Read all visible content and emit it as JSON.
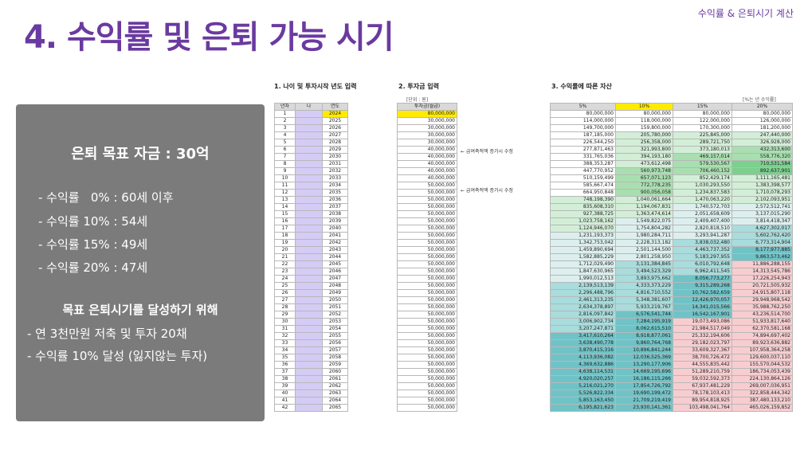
{
  "header": {
    "title": "4. 수익률 및 은퇴 가능 시기",
    "subtitle": "수익률 & 은퇴시기 계산"
  },
  "summary": {
    "goal": "은퇴 목표 자금 : 30억",
    "rates": [
      "- 수익률   0% : 60세 이후",
      "- 수익률 10% : 54세",
      "- 수익률 15% : 49세",
      "- 수익률 20% : 47세"
    ],
    "plan_title": "목표 은퇴시기를 달성하기 위해",
    "plan": [
      "- 연 3천만원 저축 및 투자 20채",
      "- 수익률 10% 달성 (잃지않는 투자)"
    ]
  },
  "sections": {
    "s1": "1. 나이 및 투자시작 년도 입력",
    "s2": "2. 투자금 입력",
    "s3": "3. 수익률에 따른 자산"
  },
  "notes": {
    "unit": "[단위 : 원]",
    "rate_unit": "[%는 년 수익률]",
    "annotation_1": "← 급여축적액 증가시 수정",
    "annotation_2": "← 급여축적액 증가시 수정"
  },
  "years_table": {
    "headers": [
      "년차",
      "나",
      "연도"
    ],
    "rows": [
      [
        "1",
        "",
        "2024"
      ],
      [
        "2",
        "",
        "2025"
      ],
      [
        "3",
        "",
        "2026"
      ],
      [
        "4",
        "",
        "2027"
      ],
      [
        "5",
        "",
        "2028"
      ],
      [
        "6",
        "",
        "2029"
      ],
      [
        "7",
        "",
        "2030"
      ],
      [
        "8",
        "",
        "2031"
      ],
      [
        "9",
        "",
        "2032"
      ],
      [
        "10",
        "",
        "2033"
      ],
      [
        "11",
        "",
        "2034"
      ],
      [
        "12",
        "",
        "2035"
      ],
      [
        "13",
        "",
        "2036"
      ],
      [
        "14",
        "",
        "2037"
      ],
      [
        "15",
        "",
        "2038"
      ],
      [
        "16",
        "",
        "2039"
      ],
      [
        "17",
        "",
        "2040"
      ],
      [
        "18",
        "",
        "2041"
      ],
      [
        "19",
        "",
        "2042"
      ],
      [
        "20",
        "",
        "2043"
      ],
      [
        "21",
        "",
        "2044"
      ],
      [
        "22",
        "",
        "2045"
      ],
      [
        "23",
        "",
        "2046"
      ],
      [
        "24",
        "",
        "2047"
      ],
      [
        "25",
        "",
        "2048"
      ],
      [
        "26",
        "",
        "2049"
      ],
      [
        "27",
        "",
        "2050"
      ],
      [
        "28",
        "",
        "2051"
      ],
      [
        "29",
        "",
        "2052"
      ],
      [
        "30",
        "",
        "2053"
      ],
      [
        "31",
        "",
        "2054"
      ],
      [
        "32",
        "",
        "2055"
      ],
      [
        "33",
        "",
        "2056"
      ],
      [
        "34",
        "",
        "2057"
      ],
      [
        "35",
        "",
        "2058"
      ],
      [
        "36",
        "",
        "2059"
      ],
      [
        "37",
        "",
        "2060"
      ],
      [
        "38",
        "",
        "2061"
      ],
      [
        "39",
        "",
        "2062"
      ],
      [
        "40",
        "",
        "2063"
      ],
      [
        "41",
        "",
        "2064"
      ],
      [
        "42",
        "",
        "2065"
      ]
    ]
  },
  "invest_table": {
    "header": "투자금(월급)",
    "values": [
      "80,000,000",
      "30,000,000",
      "30,000,000",
      "30,000,000",
      "30,000,000",
      "40,000,000",
      "40,000,000",
      "40,000,000",
      "40,000,000",
      "40,000,000",
      "50,000,000",
      "50,000,000",
      "50,000,000",
      "50,000,000",
      "50,000,000",
      "50,000,000",
      "50,000,000",
      "50,000,000",
      "50,000,000",
      "50,000,000",
      "50,000,000",
      "50,000,000",
      "50,000,000",
      "50,000,000",
      "50,000,000",
      "50,000,000",
      "50,000,000",
      "50,000,000",
      "50,000,000",
      "50,000,000",
      "50,000,000",
      "50,000,000",
      "50,000,000",
      "50,000,000",
      "50,000,000",
      "50,000,000",
      "50,000,000",
      "50,000,000",
      "50,000,000",
      "50,000,000",
      "50,000,000",
      "50,000,000"
    ]
  },
  "assets_table": {
    "headers": [
      "5%",
      "10%",
      "15%",
      "20%"
    ],
    "colors": {
      "green_dark": "#7bd08e",
      "green_mid": "#a9dfb0",
      "green_light": "#d3eed7",
      "teal_light": "#dcefee",
      "teal": "#a9dcdc",
      "teal_dark": "#6fc3c7",
      "pink": "#f7cdd0",
      "white": "#ffffff"
    },
    "rows": [
      [
        "80,000,000",
        "80,000,000",
        "80,000,000",
        "80,000,000"
      ],
      [
        "114,000,000",
        "118,000,000",
        "122,000,000",
        "126,000,000"
      ],
      [
        "149,700,000",
        "159,800,000",
        "170,300,000",
        "181,200,000"
      ],
      [
        "187,185,000",
        "205,780,000",
        "225,845,000",
        "247,440,000"
      ],
      [
        "226,544,250",
        "256,358,000",
        "289,721,750",
        "326,928,000"
      ],
      [
        "277,871,463",
        "321,993,800",
        "373,180,013",
        "432,313,600"
      ],
      [
        "331,765,036",
        "394,193,180",
        "469,157,014",
        "558,776,320"
      ],
      [
        "388,353,287",
        "473,612,498",
        "579,530,567",
        "710,531,584"
      ],
      [
        "447,770,952",
        "560,973,748",
        "706,460,152",
        "892,637,901"
      ],
      [
        "510,159,499",
        "657,071,123",
        "852,429,174",
        "1,111,165,481"
      ],
      [
        "585,667,474",
        "772,778,235",
        "1,030,293,550",
        "1,383,398,577"
      ],
      [
        "664,950,848",
        "900,056,058",
        "1,234,837,583",
        "1,710,078,293"
      ],
      [
        "748,198,390",
        "1,040,061,664",
        "1,470,063,220",
        "2,102,093,951"
      ],
      [
        "835,608,310",
        "1,194,067,831",
        "1,740,572,703",
        "2,572,512,741"
      ],
      [
        "927,388,725",
        "1,363,474,614",
        "2,051,658,609",
        "3,137,015,290"
      ],
      [
        "1,023,758,162",
        "1,549,822,075",
        "2,409,407,400",
        "3,814,418,347"
      ],
      [
        "1,124,946,070",
        "1,754,804,282",
        "2,820,818,510",
        "4,627,302,017"
      ],
      [
        "1,231,193,373",
        "1,980,284,711",
        "3,293,941,287",
        "5,602,762,420"
      ],
      [
        "1,342,753,042",
        "2,228,313,182",
        "3,838,032,480",
        "6,773,314,904"
      ],
      [
        "1,459,890,694",
        "2,501,144,500",
        "4,463,737,352",
        "8,177,977,885"
      ],
      [
        "1,582,885,229",
        "2,801,258,950",
        "5,183,297,955",
        "9,863,573,462"
      ],
      [
        "1,712,029,490",
        "3,131,384,845",
        "6,010,792,648",
        "11,886,288,155"
      ],
      [
        "1,847,630,965",
        "3,494,523,329",
        "6,962,411,545",
        "14,313,545,786"
      ],
      [
        "1,990,012,513",
        "3,893,975,662",
        "8,056,773,277",
        "17,226,254,943"
      ],
      [
        "2,139,513,139",
        "4,333,373,229",
        "9,315,289,268",
        "20,721,505,932"
      ],
      [
        "2,296,488,796",
        "4,816,710,552",
        "10,762,582,659",
        "24,915,807,118"
      ],
      [
        "2,461,313,235",
        "5,348,381,607",
        "12,426,970,057",
        "29,948,968,542"
      ],
      [
        "2,634,378,897",
        "5,933,219,767",
        "14,341,015,566",
        "35,988,762,250"
      ],
      [
        "2,816,097,842",
        "6,576,541,744",
        "16,542,167,901",
        "43,236,514,700"
      ],
      [
        "3,006,902,734",
        "7,284,195,919",
        "19,073,493,086",
        "51,933,817,640"
      ],
      [
        "3,207,247,871",
        "8,062,615,510",
        "21,984,517,049",
        "62,370,581,168"
      ],
      [
        "3,417,610,264",
        "8,918,877,061",
        "25,332,194,606",
        "74,894,697,402"
      ],
      [
        "3,638,490,778",
        "9,860,764,768",
        "29,182,023,797",
        "89,923,636,882"
      ],
      [
        "3,870,415,316",
        "10,896,841,244",
        "33,609,327,367",
        "107,958,364,258"
      ],
      [
        "4,113,936,082",
        "12,036,525,369",
        "38,700,726,472",
        "129,600,037,110"
      ],
      [
        "4,369,632,886",
        "13,290,177,906",
        "44,555,835,442",
        "155,570,044,532"
      ],
      [
        "4,638,114,531",
        "14,669,195,696",
        "51,289,210,759",
        "186,734,053,439"
      ],
      [
        "4,920,020,257",
        "16,186,115,266",
        "59,032,592,373",
        "224,130,864,126"
      ],
      [
        "5,216,021,270",
        "17,854,726,792",
        "67,937,481,229",
        "269,007,036,951"
      ],
      [
        "5,526,822,334",
        "19,690,199,472",
        "78,178,103,413",
        "322,858,444,342"
      ],
      [
        "5,853,163,450",
        "21,709,219,419",
        "89,954,818,925",
        "387,480,133,210"
      ],
      [
        "6,195,821,623",
        "23,930,141,361",
        "103,498,041,764",
        "465,026,159,852"
      ]
    ]
  }
}
